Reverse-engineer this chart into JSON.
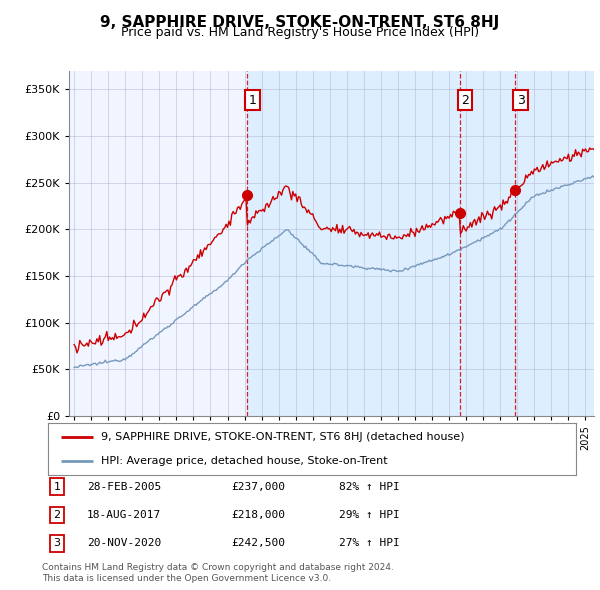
{
  "title": "9, SAPPHIRE DRIVE, STOKE-ON-TRENT, ST6 8HJ",
  "subtitle": "Price paid vs. HM Land Registry's House Price Index (HPI)",
  "legend_line1": "9, SAPPHIRE DRIVE, STOKE-ON-TRENT, ST6 8HJ (detached house)",
  "legend_line2": "HPI: Average price, detached house, Stoke-on-Trent",
  "footer1": "Contains HM Land Registry data © Crown copyright and database right 2024.",
  "footer2": "This data is licensed under the Open Government Licence v3.0.",
  "sales": [
    {
      "num": 1,
      "date": "28-FEB-2005",
      "price": "£237,000",
      "hpi": "82% ↑ HPI",
      "year": 2005.15
    },
    {
      "num": 2,
      "date": "18-AUG-2017",
      "price": "£218,000",
      "hpi": "29% ↑ HPI",
      "year": 2017.63
    },
    {
      "num": 3,
      "date": "20-NOV-2020",
      "price": "£242,500",
      "hpi": "27% ↑ HPI",
      "year": 2020.89
    }
  ],
  "sale_prices": [
    237000,
    218000,
    242500
  ],
  "red_color": "#cc0000",
  "blue_color": "#7799bb",
  "bg_shaded": "#ddeeff",
  "bg_white": "#f0f5ff",
  "background_fig": "#ffffff",
  "ylim": [
    0,
    370000
  ],
  "xlim_start": 1994.7,
  "xlim_end": 2025.5,
  "yticks": [
    0,
    50000,
    100000,
    150000,
    200000,
    250000,
    300000,
    350000
  ]
}
